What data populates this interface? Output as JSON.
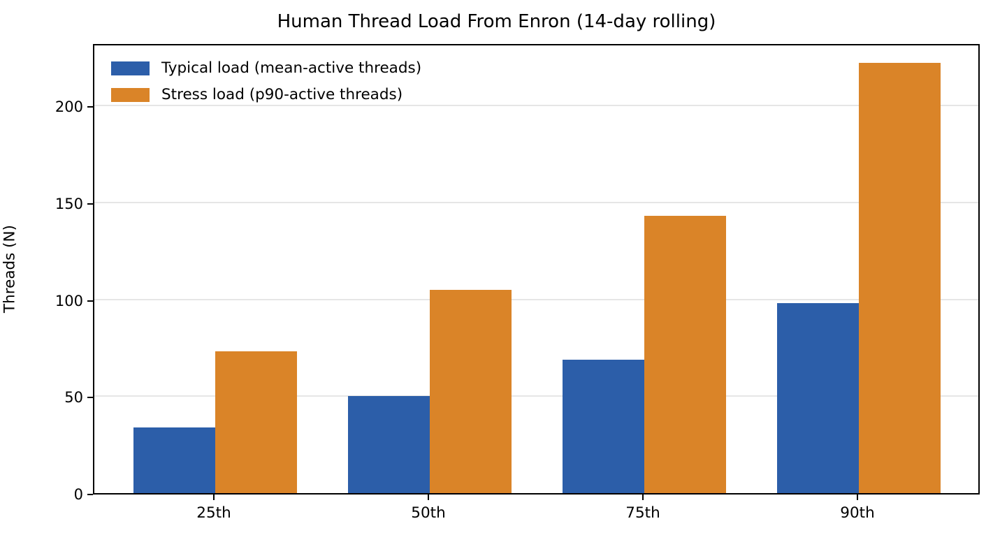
{
  "chart_data": {
    "type": "bar",
    "title": "Human Thread Load From Enron (14-day rolling)",
    "xlabel": "",
    "ylabel": "Threads (N)",
    "categories": [
      "25th",
      "50th",
      "75th",
      "90th"
    ],
    "series": [
      {
        "name": "Typical load (mean-active threads)",
        "color": "#2c5ea9",
        "values": [
          34,
          50,
          69,
          98
        ]
      },
      {
        "name": "Stress load (p90-active threads)",
        "color": "#da8428",
        "values": [
          73,
          105,
          143,
          222
        ]
      }
    ],
    "yticks": [
      0,
      50,
      100,
      150,
      200
    ],
    "ylim": [
      0,
      232.5
    ],
    "grid": "horizontal-light-gray",
    "legend_position": "upper-left",
    "plot_border": "full-box-black"
  }
}
